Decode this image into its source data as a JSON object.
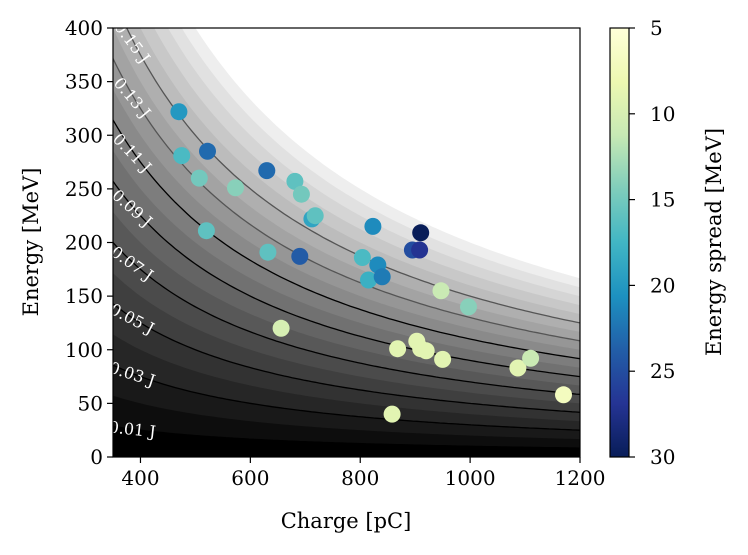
{
  "chart_data": {
    "type": "scatter",
    "xlabel": "Charge [pC]",
    "ylabel": "Energy [MeV]",
    "xlim": [
      350,
      1200
    ],
    "ylim": [
      0,
      400
    ],
    "xticks": [
      400,
      600,
      800,
      1000,
      1200
    ],
    "yticks": [
      0,
      50,
      100,
      150,
      200,
      250,
      300,
      350,
      400
    ],
    "background": {
      "kind": "filled-contour",
      "quantity": "Energy x Charge",
      "levels_J": [
        0.01,
        0.02,
        0.03,
        0.04,
        0.05,
        0.06,
        0.07,
        0.08,
        0.09,
        0.1,
        0.11,
        0.12,
        0.13,
        0.14,
        0.15,
        0.16,
        0.17,
        0.18,
        0.19,
        0.2
      ],
      "labeled_levels": [
        {
          "value": 0.01,
          "label": "0.01 J"
        },
        {
          "value": 0.03,
          "label": "0.03 J"
        },
        {
          "value": 0.05,
          "label": "0.05 J"
        },
        {
          "value": 0.07,
          "label": "0.07 J"
        },
        {
          "value": 0.09,
          "label": "0.09 J"
        },
        {
          "value": 0.11,
          "label": "0.11 J"
        },
        {
          "value": 0.13,
          "label": "0.13 J"
        },
        {
          "value": 0.15,
          "label": "0.15 J"
        }
      ]
    },
    "colorbar": {
      "label": "Energy spread [MeV]",
      "min": 5,
      "max": 30,
      "ticks": [
        5,
        10,
        15,
        20,
        25,
        30
      ],
      "colormap": "YlGnBu",
      "stops": [
        "#ffffd9",
        "#edf8b1",
        "#c7e9b4",
        "#7fcdbb",
        "#41b6c4",
        "#1d91c0",
        "#225ea8",
        "#253494",
        "#081d58"
      ]
    },
    "points": [
      {
        "x": 470,
        "y": 322,
        "c": 20
      },
      {
        "x": 475,
        "y": 281,
        "c": 17
      },
      {
        "x": 507,
        "y": 260,
        "c": 15
      },
      {
        "x": 522,
        "y": 285,
        "c": 23
      },
      {
        "x": 520,
        "y": 211,
        "c": 16
      },
      {
        "x": 573,
        "y": 251,
        "c": 14
      },
      {
        "x": 630,
        "y": 267,
        "c": 23
      },
      {
        "x": 632,
        "y": 191,
        "c": 16
      },
      {
        "x": 656,
        "y": 120,
        "c": 10
      },
      {
        "x": 681,
        "y": 257,
        "c": 16
      },
      {
        "x": 690,
        "y": 187,
        "c": 24
      },
      {
        "x": 693,
        "y": 245,
        "c": 15
      },
      {
        "x": 712,
        "y": 222,
        "c": 19
      },
      {
        "x": 718,
        "y": 225,
        "c": 16
      },
      {
        "x": 804,
        "y": 186,
        "c": 17
      },
      {
        "x": 815,
        "y": 165,
        "c": 18
      },
      {
        "x": 823,
        "y": 215,
        "c": 21
      },
      {
        "x": 832,
        "y": 179,
        "c": 21
      },
      {
        "x": 840,
        "y": 168,
        "c": 22
      },
      {
        "x": 858,
        "y": 40,
        "c": 9
      },
      {
        "x": 868,
        "y": 101,
        "c": 9
      },
      {
        "x": 895,
        "y": 193,
        "c": 25
      },
      {
        "x": 903,
        "y": 108,
        "c": 9
      },
      {
        "x": 908,
        "y": 193,
        "c": 27
      },
      {
        "x": 910,
        "y": 209,
        "c": 30
      },
      {
        "x": 910,
        "y": 101,
        "c": 9
      },
      {
        "x": 920,
        "y": 99,
        "c": 9
      },
      {
        "x": 947,
        "y": 155,
        "c": 11
      },
      {
        "x": 950,
        "y": 91,
        "c": 9
      },
      {
        "x": 997,
        "y": 140,
        "c": 14
      },
      {
        "x": 1087,
        "y": 83,
        "c": 9
      },
      {
        "x": 1110,
        "y": 92,
        "c": 11
      },
      {
        "x": 1170,
        "y": 58,
        "c": 7
      }
    ]
  }
}
